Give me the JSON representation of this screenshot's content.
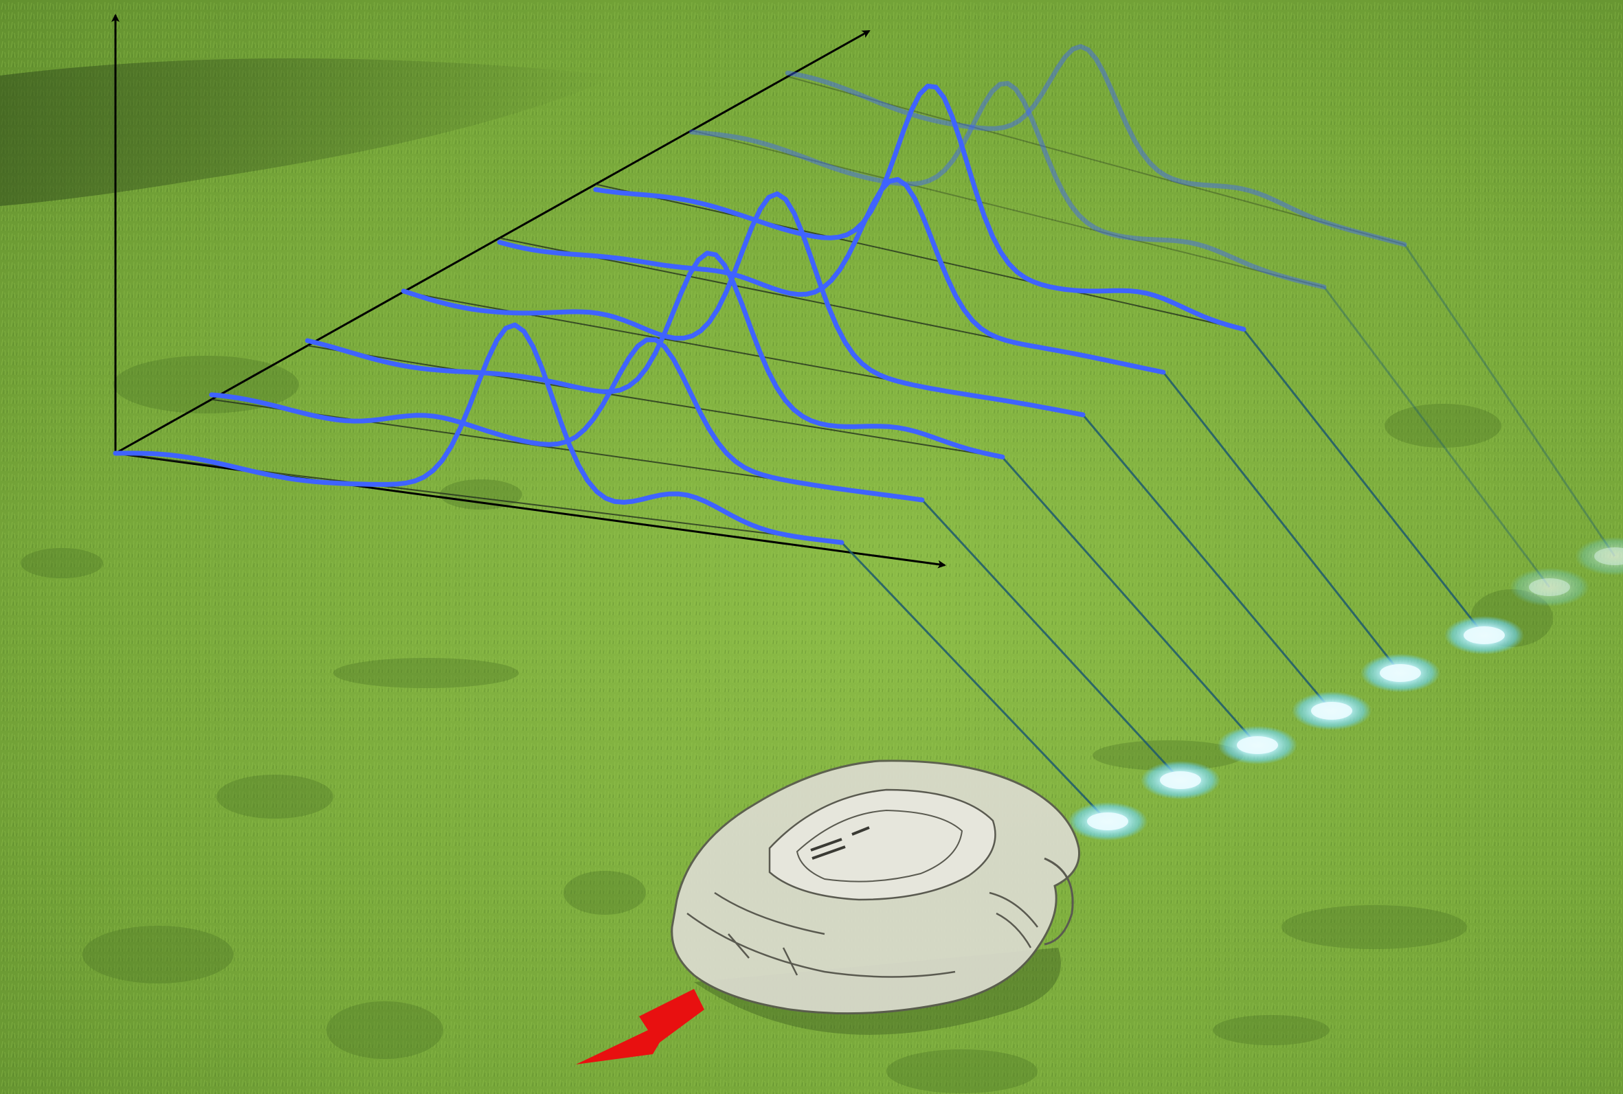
{
  "scene": {
    "colors": {
      "grass_light": "#8fbf4a",
      "grass_mid": "#6e9d34",
      "grass_dark": "#4f7a26",
      "shadow": "#3d5e24",
      "axis": "#000000",
      "curve": "#3f63ff",
      "beam": "#1e5a6e",
      "sample_spot": "#8fe8ff",
      "robot_body": "#d9d9cc",
      "robot_outline": "#5a5a50",
      "direction_arrow": "#e81010"
    },
    "icons": [
      "robot-lawnmower-icon",
      "direction-arrow-icon",
      "axis-arrow-icon"
    ],
    "sample_count": 8,
    "graph": {
      "axes": [
        "vertical-axis",
        "depth-axis",
        "horizontal-axis"
      ],
      "curve_count": 8
    }
  }
}
